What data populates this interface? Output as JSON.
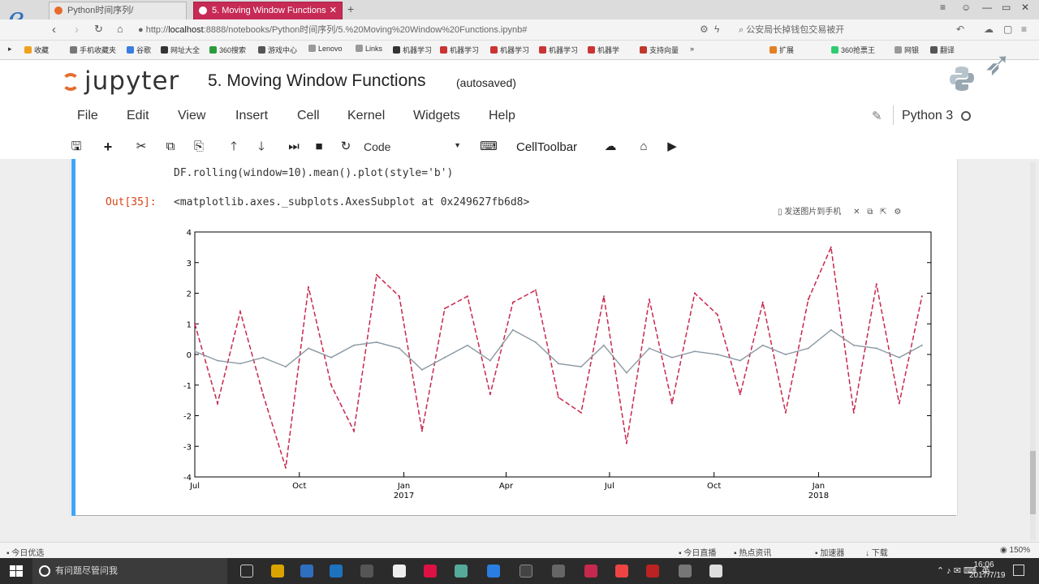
{
  "browser": {
    "tabs": [
      {
        "label": "Python时间序列/",
        "active": false
      },
      {
        "label": "5. Moving Window Functions",
        "active": true
      }
    ],
    "new_tab": "+",
    "url_host": "localhost",
    "url_prefix": "http://",
    "url_rest": ":8888/notebooks/Python时间序列/5.%20Moving%20Window%20Functions.ipynb#",
    "search_text": "公安局长掉钱包交易被开",
    "bookmarks": [
      "收藏",
      "手机收藏夹",
      "谷歌",
      "网址大全",
      "360搜索",
      "游戏中心",
      "Lenovo",
      "Links",
      "机器学习",
      "机器学习",
      "机器学习",
      "机器学习",
      "机器学",
      "支持向量"
    ],
    "bookmarks_more": "»",
    "right_bookmarks": [
      "扩展",
      "360抢票王",
      "网银",
      "翻译"
    ],
    "status_left": "今日优选",
    "status_right": [
      "今日直播",
      "热点资讯",
      "加速器",
      "下载",
      "150%"
    ]
  },
  "jupyter": {
    "logo_text": "jupyter",
    "notebook_title": "5. Moving Window Functions",
    "autosave": "(autosaved)",
    "menu": [
      "File",
      "Edit",
      "View",
      "Insert",
      "Cell",
      "Kernel",
      "Widgets",
      "Help"
    ],
    "kernel": "Python 3",
    "cell_type": "Code",
    "celltoolbar": "CellToolbar"
  },
  "cell": {
    "code": "DF.rolling(window=10).mean().plot(style='b')",
    "out_prompt": "Out[35]:",
    "out_text": "<matplotlib.axes._subplots.AxesSubplot at 0x249627fb6d8>",
    "img_tool_label": "发送图片到手机"
  },
  "chart_data": {
    "type": "line",
    "xlabel": "",
    "ylabel": "",
    "title": "",
    "x_range": [
      "2016-07-01",
      "2018-04-10"
    ],
    "ylim": [
      -4,
      4
    ],
    "y_ticks": [
      -4,
      -3,
      -2,
      -1,
      0,
      1,
      2,
      3,
      4
    ],
    "x_ticks": [
      {
        "date": "2016-07-01",
        "label": "Jul",
        "year": ""
      },
      {
        "date": "2016-10-01",
        "label": "Oct",
        "year": ""
      },
      {
        "date": "2017-01-01",
        "label": "Jan",
        "year": "2017"
      },
      {
        "date": "2017-04-01",
        "label": "Apr",
        "year": ""
      },
      {
        "date": "2017-07-01",
        "label": "Jul",
        "year": ""
      },
      {
        "date": "2017-10-01",
        "label": "Oct",
        "year": ""
      },
      {
        "date": "2018-01-01",
        "label": "Jan",
        "year": "2018"
      }
    ],
    "grid": false,
    "series": [
      {
        "style": "dashed",
        "color": "#c8284e",
        "x": [
          "2016-07-01",
          "2016-07-21",
          "2016-08-10",
          "2016-08-30",
          "2016-09-19",
          "2016-10-09",
          "2016-10-29",
          "2016-11-18",
          "2016-12-08",
          "2016-12-28",
          "2017-01-17",
          "2017-02-06",
          "2017-02-26",
          "2017-03-18",
          "2017-04-07",
          "2017-04-27",
          "2017-05-17",
          "2017-06-06",
          "2017-06-26",
          "2017-07-16",
          "2017-08-05",
          "2017-08-25",
          "2017-09-14",
          "2017-10-04",
          "2017-10-24",
          "2017-11-13",
          "2017-12-03",
          "2017-12-23",
          "2018-01-12",
          "2018-02-01",
          "2018-02-21",
          "2018-03-13",
          "2018-04-02"
        ],
        "values": [
          1.0,
          -1.6,
          1.4,
          -1.3,
          -3.7,
          2.2,
          -1.0,
          -2.5,
          2.6,
          1.9,
          -2.5,
          1.5,
          1.9,
          -1.3,
          1.7,
          2.1,
          -1.4,
          -1.9,
          1.9,
          -2.9,
          1.8,
          -1.6,
          2.0,
          1.3,
          -1.3,
          1.7,
          -1.9,
          1.8,
          3.5,
          -1.9,
          2.3,
          -1.6,
          1.9
        ]
      },
      {
        "style": "solid",
        "color": "#8b99a4",
        "x": [
          "2016-07-01",
          "2016-07-21",
          "2016-08-10",
          "2016-08-30",
          "2016-09-19",
          "2016-10-09",
          "2016-10-29",
          "2016-11-18",
          "2016-12-08",
          "2016-12-28",
          "2017-01-17",
          "2017-02-06",
          "2017-02-26",
          "2017-03-18",
          "2017-04-07",
          "2017-04-27",
          "2017-05-17",
          "2017-06-06",
          "2017-06-26",
          "2017-07-16",
          "2017-08-05",
          "2017-08-25",
          "2017-09-14",
          "2017-10-04",
          "2017-10-24",
          "2017-11-13",
          "2017-12-03",
          "2017-12-23",
          "2018-01-12",
          "2018-02-01",
          "2018-02-21",
          "2018-03-13",
          "2018-04-02"
        ],
        "values": [
          0.1,
          -0.2,
          -0.3,
          -0.1,
          -0.4,
          0.2,
          -0.1,
          0.3,
          0.4,
          0.2,
          -0.5,
          -0.1,
          0.3,
          -0.2,
          0.8,
          0.4,
          -0.3,
          -0.4,
          0.3,
          -0.6,
          0.2,
          -0.1,
          0.1,
          0.0,
          -0.2,
          0.3,
          0.0,
          0.2,
          0.8,
          0.3,
          0.2,
          -0.1,
          0.3
        ]
      }
    ]
  },
  "taskbar": {
    "search_placeholder": "有问题尽管问我",
    "tray_text": "英",
    "clock_time": "16:06",
    "clock_date": "2017/7/19"
  }
}
